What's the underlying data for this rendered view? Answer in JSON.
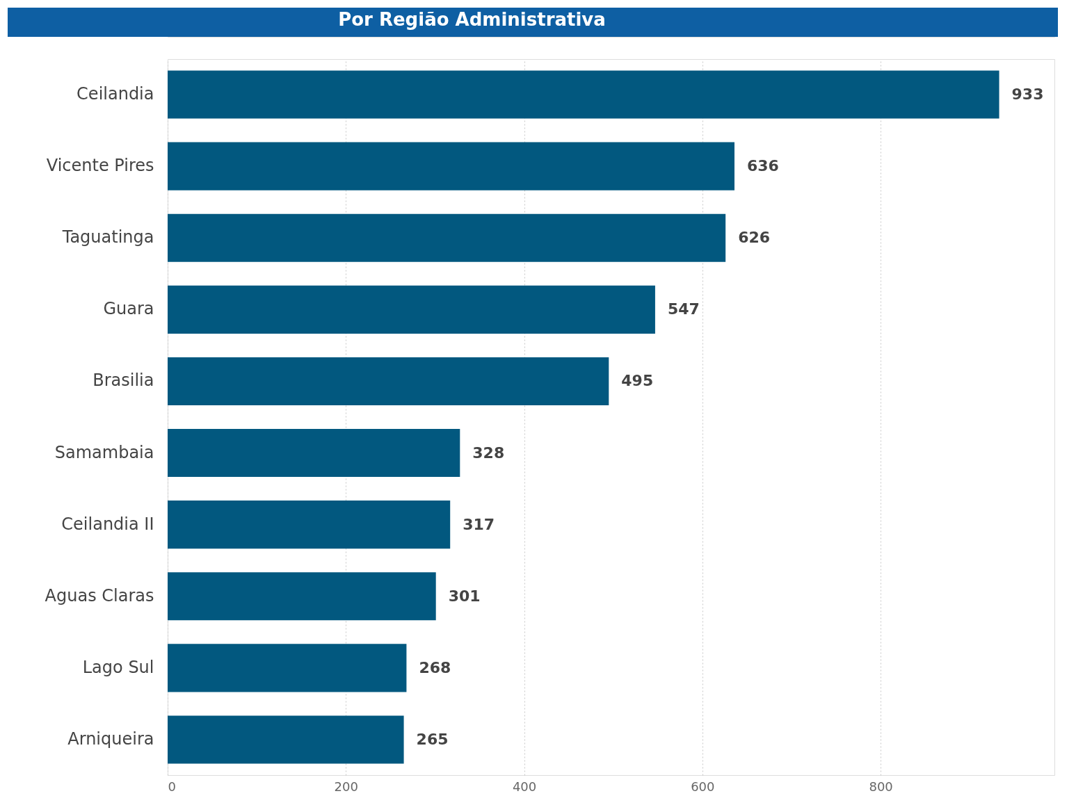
{
  "chart_data": {
    "type": "bar",
    "orientation": "horizontal",
    "title": "Por Região Administrativa",
    "categories": [
      "Ceilandia",
      "Vicente Pires",
      "Taguatinga",
      "Guara",
      "Brasilia",
      "Samambaia",
      "Ceilandia II",
      "Aguas Claras",
      "Lago Sul",
      "Arniqueira"
    ],
    "values": [
      933,
      636,
      626,
      547,
      495,
      328,
      317,
      301,
      268,
      265
    ],
    "color": "#02587f",
    "xlim": [
      0,
      995
    ],
    "xticks": [
      0,
      200,
      400,
      600,
      800
    ],
    "grid": "x",
    "data_labels": true
  }
}
